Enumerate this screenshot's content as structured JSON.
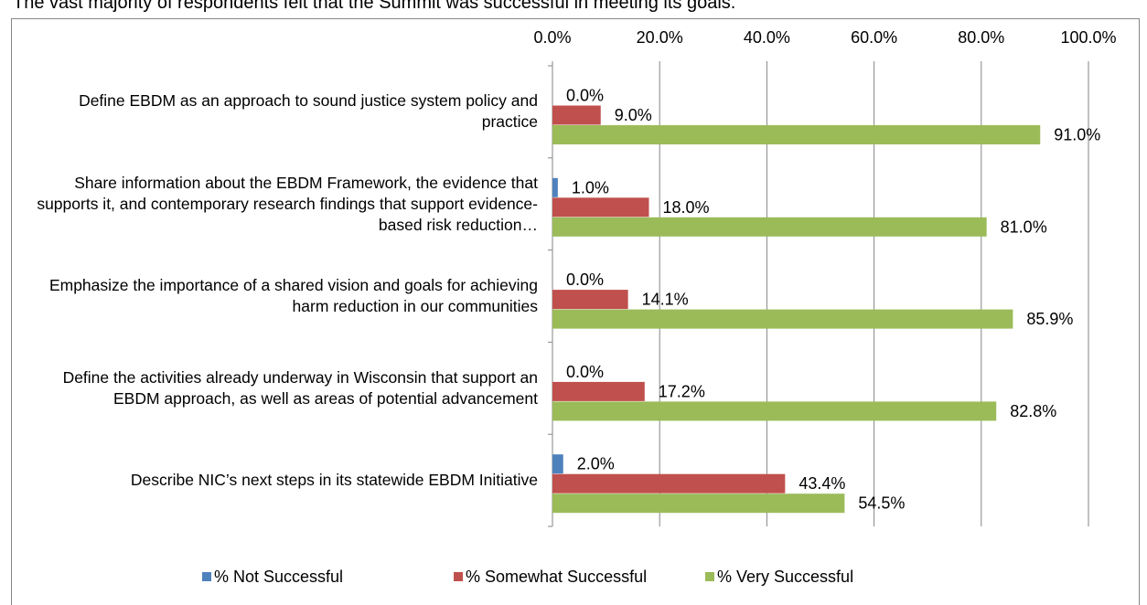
{
  "caption": "The vast majority of respondents felt that the Summit was successful in meeting its goals.",
  "chart_data": {
    "type": "bar",
    "orientation": "horizontal",
    "categories": [
      "Define EBDM as an approach to sound justice system policy and practice",
      "Share information about the EBDM Framework, the evidence that supports it, and contemporary research findings that support evidence-based risk reduction…",
      "Emphasize the importance of a shared vision and goals for achieving harm reduction in our communities",
      "Define the activities already underway in Wisconsin that support an EBDM approach, as well as areas of potential advancement",
      "Describe NIC’s next steps in its statewide EBDM Initiative"
    ],
    "series": [
      {
        "name": "% Not Successful",
        "color": "#4f81bd",
        "values": [
          0,
          1,
          0,
          0,
          2
        ],
        "value_labels": [
          "0.0%",
          "1.0%",
          "0.0%",
          "0.0%",
          "2.0%"
        ]
      },
      {
        "name": "% Somewhat Successful",
        "color": "#c0504d",
        "values": [
          9,
          18,
          14.1,
          17.2,
          43.4
        ],
        "value_labels": [
          "9.0%",
          "18.0%",
          "14.1%",
          "17.2%",
          "43.4%"
        ]
      },
      {
        "name": "% Very Successful",
        "color": "#9bbb59",
        "values": [
          91,
          81,
          85.9,
          82.8,
          54.5
        ],
        "value_labels": [
          "91.0%",
          "81.0%",
          "85.9%",
          "82.8%",
          "54.5%"
        ]
      }
    ],
    "xlim": [
      0,
      100
    ],
    "xticks": [
      {
        "value": 0,
        "label": "0.0%"
      },
      {
        "value": 20,
        "label": "20.0%"
      },
      {
        "value": 40,
        "label": "40.0%"
      },
      {
        "value": 60,
        "label": "60.0%"
      },
      {
        "value": 80,
        "label": "80.0%"
      },
      {
        "value": 100,
        "label": "100.0%"
      }
    ],
    "grid": true,
    "legend": "bottom"
  }
}
